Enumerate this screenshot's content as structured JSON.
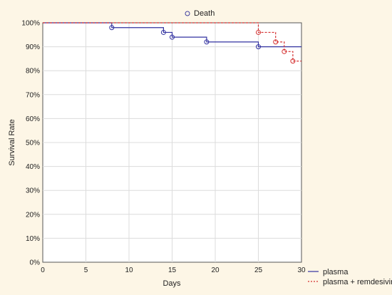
{
  "chart_data": {
    "type": "line",
    "title": "",
    "xlabel": "Days",
    "ylabel": "Survival Rate",
    "xlim": [
      0,
      30
    ],
    "ylim": [
      0,
      100
    ],
    "x_ticks": [
      0,
      5,
      10,
      15,
      20,
      25,
      30
    ],
    "y_ticks": [
      0,
      10,
      20,
      30,
      40,
      50,
      60,
      70,
      80,
      90,
      100
    ],
    "y_tick_suffix": "%",
    "grid": true,
    "marker_legend": {
      "label": "Death",
      "placement": "top-center",
      "color": "#3f3f9f"
    },
    "legend": {
      "placement": "bottom-right-outside"
    },
    "series": [
      {
        "name": "plasma",
        "style": "solid",
        "color": "#3232a0",
        "steps": [
          [
            0,
            100
          ],
          [
            8,
            98
          ],
          [
            14,
            96
          ],
          [
            15,
            94
          ],
          [
            19,
            92
          ],
          [
            25,
            90
          ],
          [
            30,
            90
          ]
        ],
        "death_markers": [
          [
            8,
            98
          ],
          [
            14,
            96
          ],
          [
            15,
            94
          ],
          [
            19,
            92
          ],
          [
            25,
            90
          ]
        ]
      },
      {
        "name": "plasma + remdesivir",
        "style": "dashed",
        "color": "#d53030",
        "steps": [
          [
            0,
            100
          ],
          [
            25,
            96
          ],
          [
            27,
            92
          ],
          [
            28,
            88
          ],
          [
            29,
            84
          ],
          [
            30,
            84
          ]
        ],
        "death_markers": [
          [
            25,
            96
          ],
          [
            27,
            92
          ],
          [
            28,
            88
          ],
          [
            29,
            84
          ]
        ]
      }
    ]
  }
}
